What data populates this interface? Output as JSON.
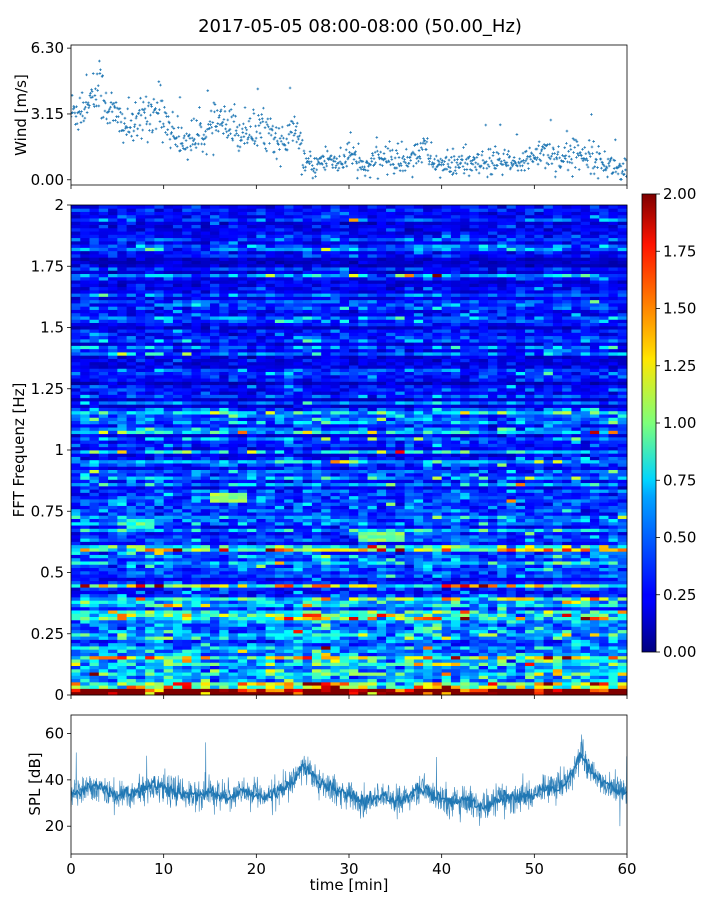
{
  "title": "2017-05-05 08:00-08:00 (50.00_Hz)",
  "chart_data": [
    {
      "type": "scatter",
      "panel": "wind",
      "title": "",
      "xlabel": "",
      "ylabel": "Wind [m/s]",
      "xlim": [
        0,
        60
      ],
      "ylim": [
        -0.25,
        6.45
      ],
      "yticks": [
        0.0,
        3.15,
        6.3
      ],
      "ytick_labels": [
        "0.00",
        "3.15",
        "6.30"
      ],
      "marker": "+",
      "color": "#1f77b4",
      "series": [
        {
          "x": [
            0,
            1,
            2,
            3,
            4,
            5,
            6,
            7,
            8,
            9,
            10,
            11,
            12,
            13,
            14,
            15,
            16,
            17,
            18,
            19,
            20,
            21,
            22,
            23,
            24,
            25,
            26,
            27,
            28,
            29,
            30,
            31,
            32,
            33,
            34,
            35,
            36,
            37,
            38,
            39,
            40,
            41,
            42,
            43,
            44,
            45,
            46,
            47,
            48,
            49,
            50,
            51,
            52,
            53,
            54,
            55,
            56,
            57,
            58,
            59,
            60
          ],
          "y": [
            3.2,
            3.4,
            3.8,
            4.4,
            3.5,
            2.9,
            2.6,
            2.5,
            3.2,
            3.3,
            3.1,
            2.2,
            1.8,
            2.0,
            2.1,
            2.3,
            2.8,
            2.4,
            2.2,
            2.5,
            2.3,
            2.6,
            2.0,
            1.6,
            2.6,
            1.0,
            0.6,
            0.9,
            1.0,
            0.8,
            1.3,
            0.7,
            0.6,
            0.9,
            1.1,
            0.9,
            0.8,
            1.2,
            1.6,
            0.9,
            0.7,
            0.6,
            0.8,
            0.7,
            0.7,
            0.8,
            0.9,
            0.8,
            0.7,
            0.8,
            1.3,
            1.4,
            1.2,
            1.0,
            1.2,
            1.3,
            1.2,
            0.9,
            0.7,
            0.6,
            0.4
          ]
        }
      ]
    },
    {
      "type": "heatmap",
      "panel": "spectrogram",
      "title": "",
      "xlabel": "",
      "ylabel": "FFT Frequenz [Hz]",
      "xlim": [
        0,
        60
      ],
      "ylim": [
        0,
        2
      ],
      "yticks": [
        0,
        0.25,
        0.5,
        0.75,
        1,
        1.25,
        1.5,
        1.75,
        2
      ],
      "colormap": "jet",
      "colorbar": {
        "min": 0.0,
        "max": 2.0,
        "ticks": [
          "0.00",
          "0.25",
          "0.50",
          "0.75",
          "1.00",
          "1.25",
          "1.50",
          "1.75",
          "2.00"
        ]
      },
      "band_profile": {
        "frequency_hz": [
          0.0,
          0.02,
          0.05,
          0.1,
          0.15,
          0.25,
          0.4,
          0.6,
          0.8,
          1.0,
          1.5,
          2.0
        ],
        "mean_level": [
          1.9,
          1.4,
          0.9,
          0.7,
          0.6,
          0.5,
          0.42,
          0.38,
          0.35,
          0.32,
          0.28,
          0.25
        ]
      },
      "time_profile": {
        "minute": [
          0,
          5,
          10,
          15,
          20,
          24,
          26,
          28,
          30,
          35,
          37,
          39,
          41,
          45,
          50,
          55,
          60
        ],
        "relative_level": [
          1.0,
          1.05,
          1.1,
          0.95,
          0.95,
          1.0,
          1.35,
          1.3,
          1.05,
          0.95,
          1.25,
          1.3,
          1.0,
          0.95,
          1.05,
          1.2,
          1.1
        ]
      },
      "highlights": [
        {
          "minute_from": 14.8,
          "minute_to": 18.8,
          "frequency_hz": 0.81,
          "level": 1.05
        },
        {
          "minute_from": 31.5,
          "minute_to": 35.5,
          "frequency_hz": 0.65,
          "level": 1.0
        },
        {
          "minute_from": 6.0,
          "minute_to": 9.0,
          "frequency_hz": 0.7,
          "level": 0.8
        }
      ]
    },
    {
      "type": "line",
      "panel": "spl",
      "title": "",
      "xlabel": "time [min]",
      "ylabel": "SPL [dB]",
      "xlim": [
        0,
        60
      ],
      "ylim": [
        8,
        68
      ],
      "xticks": [
        0,
        10,
        20,
        30,
        40,
        50,
        60
      ],
      "yticks": [
        20,
        40,
        60
      ],
      "color": "#1f77b4",
      "series": [
        {
          "x": [
            0,
            1,
            2,
            3,
            4,
            5,
            6,
            7,
            8,
            9,
            10,
            11,
            12,
            13,
            14,
            15,
            16,
            17,
            18,
            19,
            20,
            21,
            22,
            23,
            24,
            25,
            26,
            27,
            28,
            29,
            30,
            31,
            32,
            33,
            34,
            35,
            36,
            37,
            38,
            39,
            40,
            41,
            42,
            43,
            44,
            45,
            46,
            47,
            48,
            49,
            50,
            51,
            52,
            53,
            54,
            55,
            56,
            57,
            58,
            59,
            60
          ],
          "y": [
            34,
            35,
            38,
            37,
            35,
            33,
            34,
            35,
            36,
            38,
            37,
            35,
            34,
            33,
            34,
            35,
            33,
            32,
            34,
            35,
            34,
            33,
            34,
            36,
            40,
            46,
            42,
            38,
            36,
            35,
            34,
            31,
            30,
            32,
            33,
            31,
            32,
            34,
            37,
            33,
            32,
            30,
            31,
            31,
            28,
            29,
            31,
            33,
            32,
            33,
            34,
            36,
            37,
            38,
            42,
            52,
            44,
            40,
            38,
            36,
            34
          ]
        }
      ]
    }
  ]
}
